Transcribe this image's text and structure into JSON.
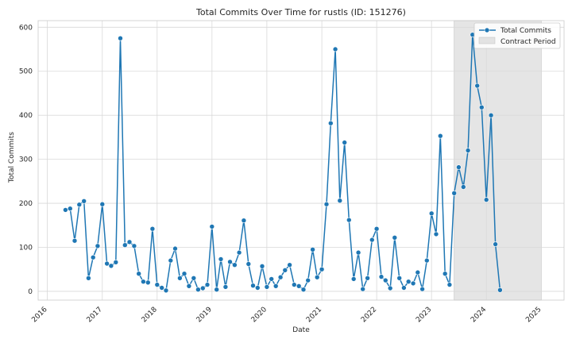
{
  "chart_data": {
    "type": "line",
    "title": "Total Commits Over Time for rustls (ID: 151276)",
    "xlabel": "Date",
    "ylabel": "Total Commits",
    "x_ticks": [
      "2016",
      "2017",
      "2018",
      "2019",
      "2020",
      "2021",
      "2022",
      "2023",
      "2024",
      "2025"
    ],
    "y_ticks": [
      0,
      100,
      200,
      300,
      400,
      500,
      600
    ],
    "xlim": [
      "2015-11-01",
      "2025-06-01"
    ],
    "ylim": [
      -20,
      615
    ],
    "grid": true,
    "legend_position": "top-right",
    "series": [
      {
        "name": "Total Commits",
        "color": "#1f77b4",
        "marker": "circle",
        "points": [
          [
            "2016-05-01",
            185
          ],
          [
            "2016-06-01",
            188
          ],
          [
            "2016-07-01",
            115
          ],
          [
            "2016-08-01",
            197
          ],
          [
            "2016-09-01",
            205
          ],
          [
            "2016-10-01",
            30
          ],
          [
            "2016-11-01",
            77
          ],
          [
            "2016-12-01",
            103
          ],
          [
            "2017-01-01",
            198
          ],
          [
            "2017-02-01",
            63
          ],
          [
            "2017-03-01",
            58
          ],
          [
            "2017-04-01",
            66
          ],
          [
            "2017-05-01",
            575
          ],
          [
            "2017-06-01",
            105
          ],
          [
            "2017-07-01",
            112
          ],
          [
            "2017-08-01",
            103
          ],
          [
            "2017-09-01",
            40
          ],
          [
            "2017-10-01",
            22
          ],
          [
            "2017-11-01",
            20
          ],
          [
            "2017-12-01",
            142
          ],
          [
            "2018-01-01",
            15
          ],
          [
            "2018-02-01",
            8
          ],
          [
            "2018-03-01",
            2
          ],
          [
            "2018-04-01",
            70
          ],
          [
            "2018-05-01",
            97
          ],
          [
            "2018-06-01",
            30
          ],
          [
            "2018-07-01",
            40
          ],
          [
            "2018-08-01",
            12
          ],
          [
            "2018-09-01",
            30
          ],
          [
            "2018-10-01",
            4
          ],
          [
            "2018-11-01",
            7
          ],
          [
            "2018-12-01",
            15
          ],
          [
            "2019-01-01",
            147
          ],
          [
            "2019-02-01",
            4
          ],
          [
            "2019-03-01",
            73
          ],
          [
            "2019-04-01",
            10
          ],
          [
            "2019-05-01",
            67
          ],
          [
            "2019-06-01",
            60
          ],
          [
            "2019-07-01",
            88
          ],
          [
            "2019-08-01",
            161
          ],
          [
            "2019-09-01",
            62
          ],
          [
            "2019-10-01",
            13
          ],
          [
            "2019-11-01",
            8
          ],
          [
            "2019-12-01",
            57
          ],
          [
            "2020-01-01",
            10
          ],
          [
            "2020-02-01",
            28
          ],
          [
            "2020-03-01",
            12
          ],
          [
            "2020-04-01",
            32
          ],
          [
            "2020-05-01",
            48
          ],
          [
            "2020-06-01",
            60
          ],
          [
            "2020-07-01",
            15
          ],
          [
            "2020-08-01",
            12
          ],
          [
            "2020-09-01",
            4
          ],
          [
            "2020-10-01",
            25
          ],
          [
            "2020-11-01",
            95
          ],
          [
            "2020-12-01",
            32
          ],
          [
            "2021-01-01",
            50
          ],
          [
            "2021-02-01",
            198
          ],
          [
            "2021-03-01",
            382
          ],
          [
            "2021-04-01",
            550
          ],
          [
            "2021-05-01",
            206
          ],
          [
            "2021-06-01",
            338
          ],
          [
            "2021-07-01",
            162
          ],
          [
            "2021-08-01",
            28
          ],
          [
            "2021-09-01",
            88
          ],
          [
            "2021-10-01",
            5
          ],
          [
            "2021-11-01",
            30
          ],
          [
            "2021-12-01",
            117
          ],
          [
            "2022-01-01",
            142
          ],
          [
            "2022-02-01",
            33
          ],
          [
            "2022-03-01",
            25
          ],
          [
            "2022-04-01",
            7
          ],
          [
            "2022-05-01",
            122
          ],
          [
            "2022-06-01",
            30
          ],
          [
            "2022-07-01",
            8
          ],
          [
            "2022-08-01",
            22
          ],
          [
            "2022-09-01",
            18
          ],
          [
            "2022-10-01",
            43
          ],
          [
            "2022-11-01",
            5
          ],
          [
            "2022-12-01",
            70
          ],
          [
            "2023-01-01",
            177
          ],
          [
            "2023-02-01",
            130
          ],
          [
            "2023-03-01",
            353
          ],
          [
            "2023-04-01",
            40
          ],
          [
            "2023-05-01",
            15
          ],
          [
            "2023-06-01",
            223
          ],
          [
            "2023-07-01",
            282
          ],
          [
            "2023-08-01",
            237
          ],
          [
            "2023-09-01",
            320
          ],
          [
            "2023-10-01",
            583
          ],
          [
            "2023-11-01",
            467
          ],
          [
            "2023-12-01",
            418
          ],
          [
            "2024-01-01",
            208
          ],
          [
            "2024-02-01",
            400
          ],
          [
            "2024-03-01",
            107
          ],
          [
            "2024-04-01",
            3
          ]
        ]
      }
    ],
    "shaded_region": {
      "name": "Contract Period",
      "start": "2023-06-01",
      "end": "2025-01-01",
      "color": "#d3d3d3"
    }
  }
}
